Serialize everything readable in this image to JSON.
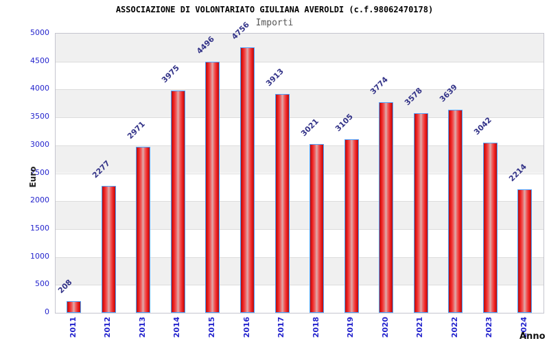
{
  "chart_data": {
    "type": "bar",
    "title": "ASSOCIAZIONE DI VOLONTARIATO GIULIANA AVEROLDI (c.f.98062470178)",
    "subtitle": "Importi",
    "xlabel": "Anno",
    "ylabel": "Euro",
    "categories": [
      "2011",
      "2012",
      "2013",
      "2014",
      "2015",
      "2016",
      "2017",
      "2018",
      "2019",
      "2020",
      "2021",
      "2022",
      "2023",
      "2024"
    ],
    "values": [
      208,
      2277,
      2971,
      3975,
      4496,
      4756,
      3913,
      3021,
      3105,
      3774,
      3578,
      3639,
      3042,
      2214
    ],
    "ylim": [
      0,
      5000
    ],
    "yticks": [
      0,
      500,
      1000,
      1500,
      2000,
      2500,
      3000,
      3500,
      4000,
      4500,
      5000
    ],
    "grid": true,
    "legend": "none",
    "colors": {
      "bar_fill": "#ee1c1c",
      "bar_fill_highlight": "#ddacac",
      "bar_border": "#4da3ff",
      "band_gray": "#f0f0f0",
      "band_white": "#ffffff",
      "gridline": "#dcdcdc",
      "tick_text": "#2323cd",
      "value_text": "#333388",
      "title_text": "#000000",
      "subtitle_text": "#555555",
      "axis_label_text": "#111111"
    }
  }
}
